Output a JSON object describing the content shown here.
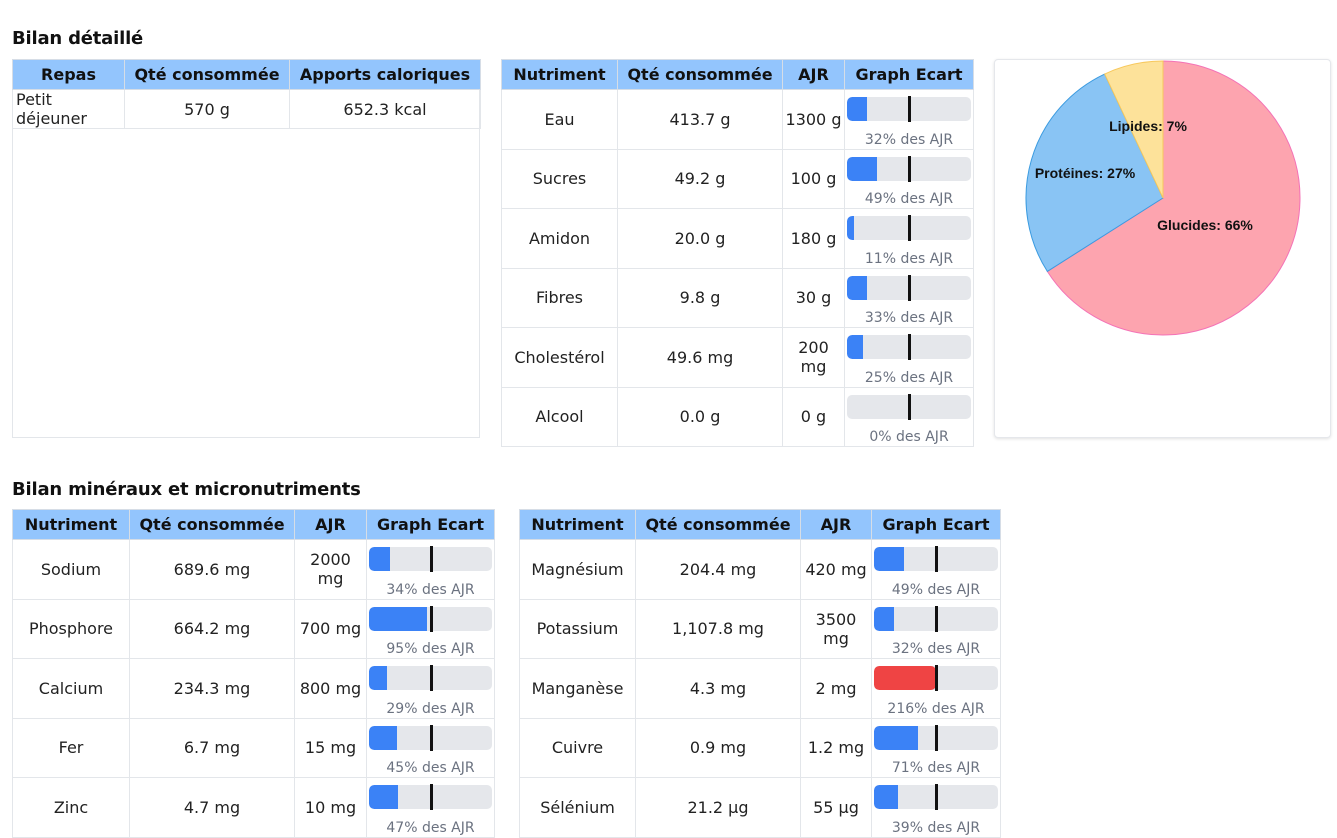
{
  "section_detail_title": "Bilan détaillé",
  "section_minerals_title": "Bilan minéraux et micronutriments",
  "meals": {
    "headers": [
      "Repas",
      "Qté consommée",
      "Apports caloriques"
    ],
    "rows": [
      {
        "meal": "Petit déjeuner",
        "qty": "570 g",
        "calories": "652.3 kcal"
      }
    ]
  },
  "nutrient_headers": [
    "Nutriment",
    "Qté consommée",
    "AJR",
    "Graph Ecart"
  ],
  "macro_nutrients": [
    {
      "name": "Eau",
      "qty": "413.7 g",
      "ajr": "1300 g",
      "pct": 32,
      "pct_label": "32% des AJR"
    },
    {
      "name": "Sucres",
      "qty": "49.2 g",
      "ajr": "100 g",
      "pct": 49,
      "pct_label": "49% des AJR"
    },
    {
      "name": "Amidon",
      "qty": "20.0 g",
      "ajr": "180 g",
      "pct": 11,
      "pct_label": "11% des AJR"
    },
    {
      "name": "Fibres",
      "qty": "9.8 g",
      "ajr": "30 g",
      "pct": 33,
      "pct_label": "33% des AJR"
    },
    {
      "name": "Cholestérol",
      "qty": "49.6 mg",
      "ajr": "200 mg",
      "pct": 25,
      "pct_label": "25% des AJR"
    },
    {
      "name": "Alcool",
      "qty": "0.0 g",
      "ajr": "0 g",
      "pct": 0,
      "pct_label": "0% des AJR"
    }
  ],
  "minerals_left": [
    {
      "name": "Sodium",
      "qty": "689.6 mg",
      "ajr": "2000 mg",
      "pct": 34,
      "pct_label": "34% des AJR"
    },
    {
      "name": "Phosphore",
      "qty": "664.2 mg",
      "ajr": "700 mg",
      "pct": 95,
      "pct_label": "95% des AJR"
    },
    {
      "name": "Calcium",
      "qty": "234.3 mg",
      "ajr": "800 mg",
      "pct": 29,
      "pct_label": "29% des AJR"
    },
    {
      "name": "Fer",
      "qty": "6.7 mg",
      "ajr": "15 mg",
      "pct": 45,
      "pct_label": "45% des AJR"
    },
    {
      "name": "Zinc",
      "qty": "4.7 mg",
      "ajr": "10 mg",
      "pct": 47,
      "pct_label": "47% des AJR"
    }
  ],
  "minerals_right": [
    {
      "name": "Magnésium",
      "qty": "204.4 mg",
      "ajr": "420 mg",
      "pct": 49,
      "pct_label": "49% des AJR"
    },
    {
      "name": "Potassium",
      "qty": "1,107.8 mg",
      "ajr": "3500 mg",
      "pct": 32,
      "pct_label": "32% des AJR"
    },
    {
      "name": "Manganèse",
      "qty": "4.3 mg",
      "ajr": "2 mg",
      "pct": 216,
      "pct_label": "216% des AJR"
    },
    {
      "name": "Cuivre",
      "qty": "0.9 mg",
      "ajr": "1.2 mg",
      "pct": 71,
      "pct_label": "71% des AJR"
    },
    {
      "name": "Sélénium",
      "qty": "21.2 µg",
      "ajr": "55 µg",
      "pct": 39,
      "pct_label": "39% des AJR"
    }
  ],
  "colors": {
    "header_bg": "#93c5fd",
    "bar_track": "#e5e7eb",
    "bar_fill": "#3b82f6",
    "bar_over": "#ef4444",
    "marker": "#111111"
  },
  "chart_data": {
    "type": "pie",
    "slices": [
      {
        "label": "Glucides",
        "value": 66,
        "display": "Glucides: 66%",
        "color": "#fda4af",
        "stroke": "#f472b6"
      },
      {
        "label": "Protéines",
        "value": 27,
        "display": "Protéines: 27%",
        "color": "#89c4f4",
        "stroke": "#3b9be0"
      },
      {
        "label": "Lipides",
        "value": 7,
        "display": "Lipides: 7%",
        "color": "#fde29a",
        "stroke": "#f7c85c"
      }
    ]
  }
}
